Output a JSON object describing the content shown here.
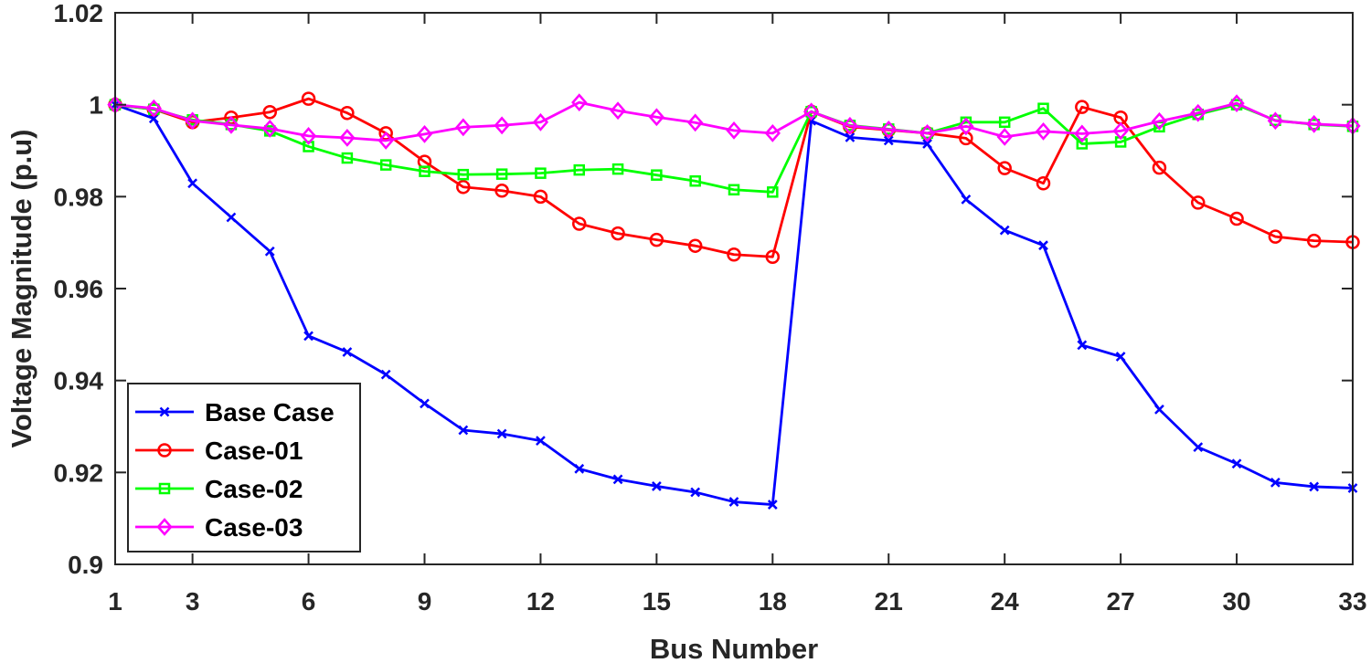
{
  "chart_data": {
    "type": "line",
    "title": "",
    "xlabel": "Bus Number",
    "ylabel": "Voltage Magnitude (p.u)",
    "xlim": [
      1,
      33
    ],
    "ylim": [
      0.9,
      1.02
    ],
    "xticks": [
      1,
      3,
      6,
      9,
      12,
      15,
      18,
      21,
      24,
      27,
      30,
      33
    ],
    "xtick_labels": [
      "1",
      "3",
      "6",
      "9",
      "12",
      "15",
      "18",
      "21",
      "24",
      "27",
      "30",
      "33"
    ],
    "yticks": [
      0.9,
      0.92,
      0.94,
      0.96,
      0.98,
      1.0,
      1.02
    ],
    "ytick_labels": [
      "0.9",
      "0.92",
      "0.94",
      "0.96",
      "0.98",
      "1",
      "1.02"
    ],
    "grid": false,
    "legend_position": "bottom-left",
    "x": [
      1,
      2,
      3,
      4,
      5,
      6,
      7,
      8,
      9,
      10,
      11,
      12,
      13,
      14,
      15,
      16,
      17,
      18,
      19,
      20,
      21,
      22,
      23,
      24,
      25,
      26,
      27,
      28,
      29,
      30,
      31,
      32,
      33
    ],
    "series": [
      {
        "name": "Base Case",
        "color": "#0000ff",
        "marker": "x",
        "values": [
          1.0,
          0.997,
          0.9829,
          0.9755,
          0.9681,
          0.9497,
          0.9462,
          0.9413,
          0.935,
          0.9292,
          0.9284,
          0.9269,
          0.9208,
          0.9185,
          0.917,
          0.9157,
          0.9136,
          0.913,
          0.9965,
          0.9929,
          0.9922,
          0.9915,
          0.9794,
          0.9727,
          0.9694,
          0.9477,
          0.9452,
          0.9337,
          0.9255,
          0.9219,
          0.9178,
          0.9169,
          0.9166
        ]
      },
      {
        "name": "Case-01",
        "color": "#ff0000",
        "marker": "circle",
        "values": [
          1.0,
          0.999,
          0.9962,
          0.9972,
          0.9984,
          1.0013,
          0.9982,
          0.9938,
          0.9876,
          0.9821,
          0.9813,
          0.98,
          0.9741,
          0.972,
          0.9706,
          0.9693,
          0.9674,
          0.9669,
          0.9985,
          0.9952,
          0.9945,
          0.9938,
          0.9927,
          0.9862,
          0.9829,
          0.9995,
          0.9972,
          0.9863,
          0.9787,
          0.9752,
          0.9713,
          0.9704,
          0.9701
        ]
      },
      {
        "name": "Case-02",
        "color": "#00ff00",
        "marker": "square",
        "values": [
          1.0,
          0.999,
          0.9967,
          0.9957,
          0.9943,
          0.9909,
          0.9884,
          0.9869,
          0.9855,
          0.9848,
          0.9849,
          0.9851,
          0.9858,
          0.986,
          0.9847,
          0.9834,
          0.9815,
          0.981,
          0.9985,
          0.9955,
          0.9947,
          0.9938,
          0.9962,
          0.9962,
          0.9992,
          0.9915,
          0.9919,
          0.9952,
          0.9979,
          1.0,
          0.9966,
          0.9957,
          0.9953
        ]
      },
      {
        "name": "Case-03",
        "color": "#ff00ff",
        "marker": "diamond",
        "values": [
          1.0,
          0.9992,
          0.9965,
          0.9956,
          0.9948,
          0.9932,
          0.9928,
          0.9922,
          0.9936,
          0.9951,
          0.9955,
          0.9962,
          1.0005,
          0.9987,
          0.9973,
          0.9961,
          0.9944,
          0.9938,
          0.9985,
          0.9954,
          0.9946,
          0.9938,
          0.9953,
          0.993,
          0.9942,
          0.9937,
          0.9943,
          0.9964,
          0.9982,
          1.0003,
          0.9965,
          0.9958,
          0.9954
        ]
      }
    ]
  }
}
